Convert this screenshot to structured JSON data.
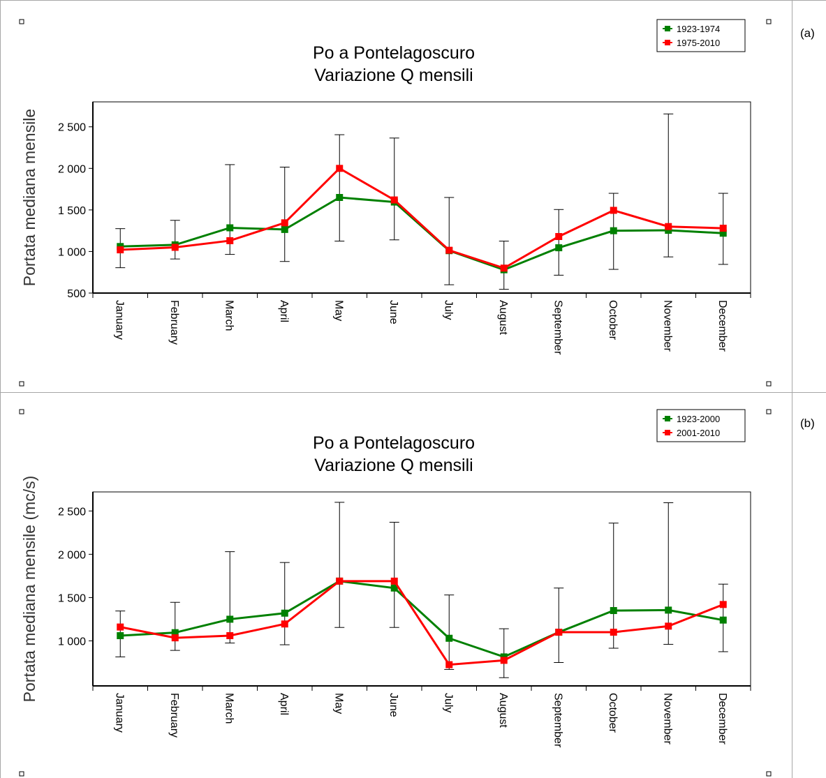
{
  "panel_labels": [
    "(a)",
    "(b)"
  ],
  "chart_data": [
    {
      "type": "line",
      "title_line1": "Po a Pontelagoscuro",
      "title_line2": "Variazione Q mensili",
      "ylabel": "Portata mediana mensile",
      "xlabel": "",
      "ylim": [
        500,
        2800
      ],
      "yticks": [
        500,
        1000,
        1500,
        2000,
        2500
      ],
      "ytick_labels": [
        "500",
        "1 000",
        "1 500",
        "2 000",
        "2 500"
      ],
      "categories": [
        "January",
        "February",
        "March",
        "April",
        "May",
        "June",
        "July",
        "August",
        "September",
        "October",
        "November",
        "December"
      ],
      "legend_position": "top-right",
      "series": [
        {
          "name": "1923-1974",
          "color": "#008000",
          "values": [
            1060,
            1080,
            1285,
            1265,
            1650,
            1595,
            1010,
            780,
            1045,
            1250,
            1255,
            1220
          ]
        },
        {
          "name": "1975-2010",
          "color": "#ff0000",
          "values": [
            1020,
            1050,
            1130,
            1345,
            2000,
            1620,
            1015,
            800,
            1180,
            1495,
            1300,
            1280
          ]
        }
      ],
      "error_bars": {
        "low": [
          805,
          910,
          965,
          880,
          1125,
          1140,
          600,
          545,
          715,
          785,
          935,
          845
        ],
        "high": [
          1275,
          1375,
          2045,
          2015,
          2405,
          2365,
          1650,
          1125,
          1505,
          1700,
          2655,
          1700
        ]
      },
      "grid": false
    },
    {
      "type": "line",
      "title_line1": "Po a Pontelagoscuro",
      "title_line2": "Variazione Q mensili",
      "ylabel": "Portata mediana mensile (mc/s)",
      "xlabel": "",
      "ylim": [
        480,
        2720
      ],
      "yticks": [
        1000,
        1500,
        2000,
        2500
      ],
      "ytick_labels": [
        "1 000",
        "1 500",
        "2 000",
        "2 500"
      ],
      "categories": [
        "January",
        "February",
        "March",
        "April",
        "May",
        "June",
        "July",
        "August",
        "September",
        "October",
        "November",
        "December"
      ],
      "legend_position": "top-right",
      "series": [
        {
          "name": "1923-2000",
          "color": "#008000",
          "values": [
            1060,
            1095,
            1250,
            1320,
            1690,
            1610,
            1030,
            815,
            1100,
            1350,
            1355,
            1240
          ]
        },
        {
          "name": "2001-2010",
          "color": "#ff0000",
          "values": [
            1160,
            1035,
            1060,
            1195,
            1690,
            1690,
            725,
            775,
            1100,
            1100,
            1170,
            1420
          ]
        }
      ],
      "error_bars": {
        "low": [
          815,
          890,
          975,
          955,
          1155,
          1155,
          670,
          575,
          750,
          915,
          960,
          875
        ],
        "high": [
          1345,
          1445,
          2030,
          1905,
          2600,
          2370,
          1530,
          1140,
          1610,
          2360,
          2595,
          1655
        ]
      },
      "grid": false
    }
  ]
}
